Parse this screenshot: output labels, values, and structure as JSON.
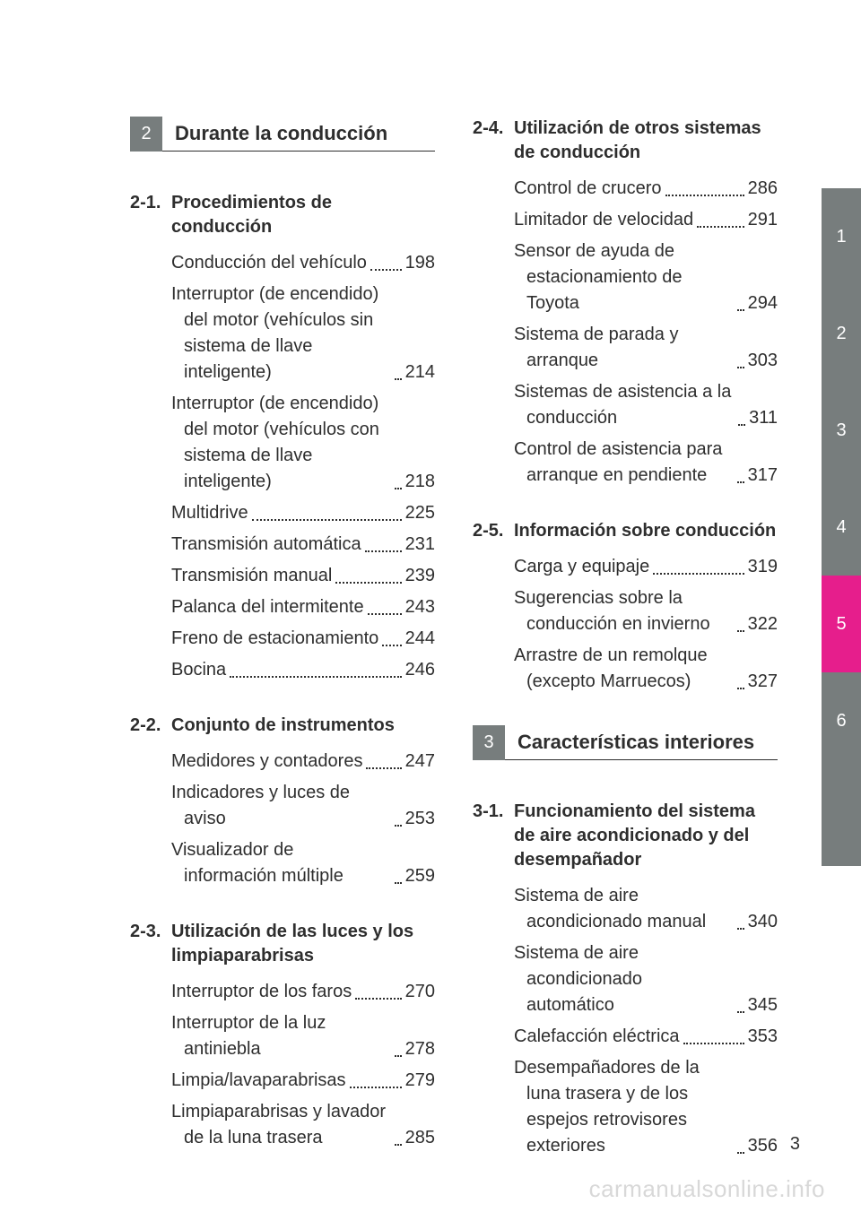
{
  "colors": {
    "tab_gray": "#777d7d",
    "tab_pink": "#e61e8c",
    "text": "#2e2e2e",
    "watermark": "#d8d8d8"
  },
  "left_chapter": {
    "num": "2",
    "title": "Durante la conducción"
  },
  "right_chapter": {
    "num": "3",
    "title": "Características interiores"
  },
  "sections_left": [
    {
      "num": "2-1.",
      "title": "Procedimientos de conducción",
      "entries": [
        {
          "label": "Conducción del vehículo",
          "page": "198"
        },
        {
          "label": "Interruptor (de encendido) del motor (vehículos sin sistema de llave inteligente)",
          "page": "214"
        },
        {
          "label": "Interruptor (de encendido) del motor (vehículos con sistema de llave inteligente)",
          "page": "218"
        },
        {
          "label": "Multidrive",
          "page": "225"
        },
        {
          "label": "Transmisión automática",
          "page": "231"
        },
        {
          "label": "Transmisión manual",
          "page": "239"
        },
        {
          "label": "Palanca del intermitente",
          "page": "243"
        },
        {
          "label": "Freno de estacionamiento",
          "page": "244"
        },
        {
          "label": "Bocina",
          "page": "246"
        }
      ]
    },
    {
      "num": "2-2.",
      "title": "Conjunto de instrumentos",
      "entries": [
        {
          "label": "Medidores y contadores",
          "page": "247"
        },
        {
          "label": "Indicadores y luces de aviso",
          "page": "253"
        },
        {
          "label": "Visualizador de información múltiple",
          "page": "259"
        }
      ]
    },
    {
      "num": "2-3.",
      "title": "Utilización de las luces y los limpiaparabrisas",
      "entries": [
        {
          "label": "Interruptor de los faros",
          "page": "270"
        },
        {
          "label": "Interruptor de la luz antiniebla",
          "page": "278"
        },
        {
          "label": "Limpia/lavaparabrisas",
          "page": "279"
        },
        {
          "label": "Limpiaparabrisas y lavador de la luna trasera",
          "page": "285"
        }
      ]
    }
  ],
  "sections_right_top": [
    {
      "num": "2-4.",
      "title": "Utilización de otros sistemas de conducción",
      "entries": [
        {
          "label": "Control de crucero",
          "page": "286"
        },
        {
          "label": "Limitador de velocidad",
          "page": "291"
        },
        {
          "label": "Sensor de ayuda de estacionamiento de Toyota",
          "page": "294"
        },
        {
          "label": "Sistema de parada y arranque",
          "page": "303"
        },
        {
          "label": "Sistemas de asistencia a la conducción",
          "page": "311"
        },
        {
          "label": "Control de asistencia para arranque en pendiente",
          "page": "317"
        }
      ]
    },
    {
      "num": "2-5.",
      "title": "Información sobre conducción",
      "entries": [
        {
          "label": "Carga y equipaje",
          "page": "319"
        },
        {
          "label": "Sugerencias sobre la conducción en invierno",
          "page": "322"
        },
        {
          "label": "Arrastre de un remolque (excepto Marruecos)",
          "page": "327"
        }
      ]
    }
  ],
  "sections_right_bottom": [
    {
      "num": "3-1.",
      "title": "Funcionamiento del sistema de aire acondicionado y del desempañador",
      "entries": [
        {
          "label": "Sistema de aire acondicionado manual",
          "page": "340"
        },
        {
          "label": "Sistema de aire acondicionado automático",
          "page": "345"
        },
        {
          "label": "Calefacción eléctrica",
          "page": "353"
        },
        {
          "label": "Desempañadores de la luna trasera y de los espejos retrovisores exteriores",
          "page": "356"
        }
      ]
    }
  ],
  "tabs": [
    {
      "label": "1",
      "color": "#777d7d"
    },
    {
      "label": "2",
      "color": "#777d7d"
    },
    {
      "label": "3",
      "color": "#777d7d"
    },
    {
      "label": "4",
      "color": "#777d7d"
    },
    {
      "label": "5",
      "color": "#e61e8c"
    },
    {
      "label": "6",
      "color": "#777d7d"
    },
    {
      "label": "",
      "color": "#777d7d"
    }
  ],
  "page_number": "3",
  "watermark": "carmanualsonline.info"
}
